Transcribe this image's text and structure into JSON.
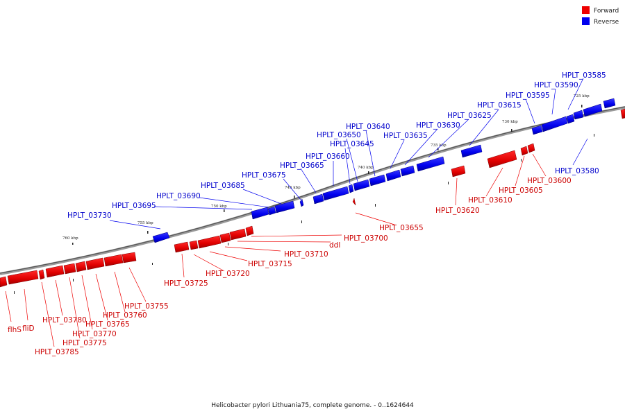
{
  "legend": [
    {
      "label": "Forward",
      "color": "#ee0000"
    },
    {
      "label": "Reverse",
      "color": "#0000ee"
    }
  ],
  "caption": "Helicobacter pylori Lithuania75, complete genome. - 0..1624644",
  "colors": {
    "forward": "#ee0000",
    "reverse": "#0000ee"
  },
  "tick_labels": [
    "760 kbp",
    "755 kbp",
    "750 kbp",
    "745 kbp",
    "740 kbp",
    "735 kbp",
    "730 kbp",
    "725 kbp"
  ],
  "reverse_genes": [
    "HPLT_03585",
    "HPLT_03590",
    "HPLT_03595",
    "HPLT_03615",
    "HPLT_03625",
    "HPLT_03630",
    "HPLT_03635",
    "HPLT_03640",
    "HPLT_03650",
    "HPLT_03645",
    "HPLT_03660",
    "HPLT_03665",
    "HPLT_03675",
    "HPLT_03685",
    "HPLT_03690",
    "HPLT_03695",
    "HPLT_03730",
    "HPLT_03580"
  ],
  "forward_genes": [
    "HPLT_03655",
    "HPLT_03700",
    "ddl",
    "HPLT_03710",
    "HPLT_03715",
    "HPLT_03720",
    "HPLT_03725",
    "HPLT_03755",
    "HPLT_03760",
    "HPLT_03765",
    "HPLT_03770",
    "HPLT_03775",
    "HPLT_03780",
    "HPLT_03785",
    "flhS",
    "fliD",
    "HPLT_03620",
    "HPLT_03610",
    "HPLT_03605",
    "HPLT_03600"
  ]
}
